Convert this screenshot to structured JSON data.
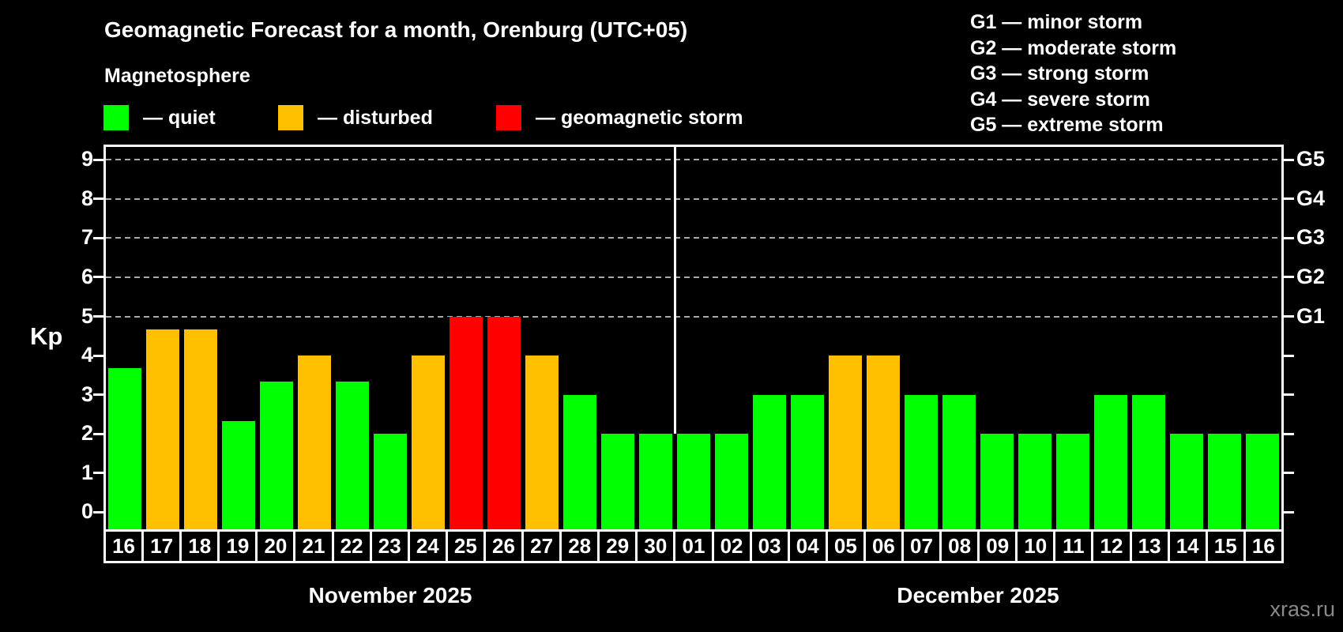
{
  "title": "Geomagnetic Forecast for a month, Orenburg (UTC+05)",
  "subtitle": "Magnetosphere",
  "watermark": "xras.ru",
  "legend": {
    "dash": "—",
    "items": [
      {
        "status": "quiet",
        "label": "quiet",
        "color": "#00ff00"
      },
      {
        "status": "disturbed",
        "label": "disturbed",
        "color": "#ffc000"
      },
      {
        "status": "storm",
        "label": "geomagnetic storm",
        "color": "#ff0000"
      }
    ]
  },
  "storm_scale": {
    "dash": "—",
    "items": [
      {
        "code": "G1",
        "label": "minor storm",
        "kp": 5
      },
      {
        "code": "G2",
        "label": "moderate storm",
        "kp": 6
      },
      {
        "code": "G3",
        "label": "strong storm",
        "kp": 7
      },
      {
        "code": "G4",
        "label": "severe storm",
        "kp": 8
      },
      {
        "code": "G5",
        "label": "extreme storm",
        "kp": 9
      }
    ]
  },
  "chart_data": {
    "type": "bar",
    "ylabel": "Kp",
    "ylim": [
      -0.44,
      9.33
    ],
    "yticks": [
      0,
      1,
      2,
      3,
      4,
      5,
      6,
      7,
      8,
      9
    ],
    "grid_kp": [
      5,
      6,
      7,
      8,
      9
    ],
    "grid_color": "#aaaaaa",
    "legend_position": "top",
    "months": [
      {
        "label": "November 2025",
        "days": [
          {
            "date": "16",
            "kp": 3.67,
            "status": "quiet"
          },
          {
            "date": "17",
            "kp": 4.67,
            "status": "disturbed"
          },
          {
            "date": "18",
            "kp": 4.67,
            "status": "disturbed"
          },
          {
            "date": "19",
            "kp": 2.33,
            "status": "quiet"
          },
          {
            "date": "20",
            "kp": 3.33,
            "status": "quiet"
          },
          {
            "date": "21",
            "kp": 4,
            "status": "disturbed"
          },
          {
            "date": "22",
            "kp": 3.33,
            "status": "quiet"
          },
          {
            "date": "23",
            "kp": 2,
            "status": "quiet"
          },
          {
            "date": "24",
            "kp": 4,
            "status": "disturbed"
          },
          {
            "date": "25",
            "kp": 5,
            "status": "storm"
          },
          {
            "date": "26",
            "kp": 5,
            "status": "storm"
          },
          {
            "date": "27",
            "kp": 4,
            "status": "disturbed"
          },
          {
            "date": "28",
            "kp": 3,
            "status": "quiet"
          },
          {
            "date": "29",
            "kp": 2,
            "status": "quiet"
          },
          {
            "date": "30",
            "kp": 2,
            "status": "quiet"
          }
        ]
      },
      {
        "label": "December 2025",
        "days": [
          {
            "date": "01",
            "kp": 2,
            "status": "quiet"
          },
          {
            "date": "02",
            "kp": 2,
            "status": "quiet"
          },
          {
            "date": "03",
            "kp": 3,
            "status": "quiet"
          },
          {
            "date": "04",
            "kp": 3,
            "status": "quiet"
          },
          {
            "date": "05",
            "kp": 4,
            "status": "disturbed"
          },
          {
            "date": "06",
            "kp": 4,
            "status": "disturbed"
          },
          {
            "date": "07",
            "kp": 3,
            "status": "quiet"
          },
          {
            "date": "08",
            "kp": 3,
            "status": "quiet"
          },
          {
            "date": "09",
            "kp": 2,
            "status": "quiet"
          },
          {
            "date": "10",
            "kp": 2,
            "status": "quiet"
          },
          {
            "date": "11",
            "kp": 2,
            "status": "quiet"
          },
          {
            "date": "12",
            "kp": 3,
            "status": "quiet"
          },
          {
            "date": "13",
            "kp": 3,
            "status": "quiet"
          },
          {
            "date": "14",
            "kp": 2,
            "status": "quiet"
          },
          {
            "date": "15",
            "kp": 2,
            "status": "quiet"
          },
          {
            "date": "16",
            "kp": 2,
            "status": "quiet"
          }
        ]
      }
    ]
  }
}
